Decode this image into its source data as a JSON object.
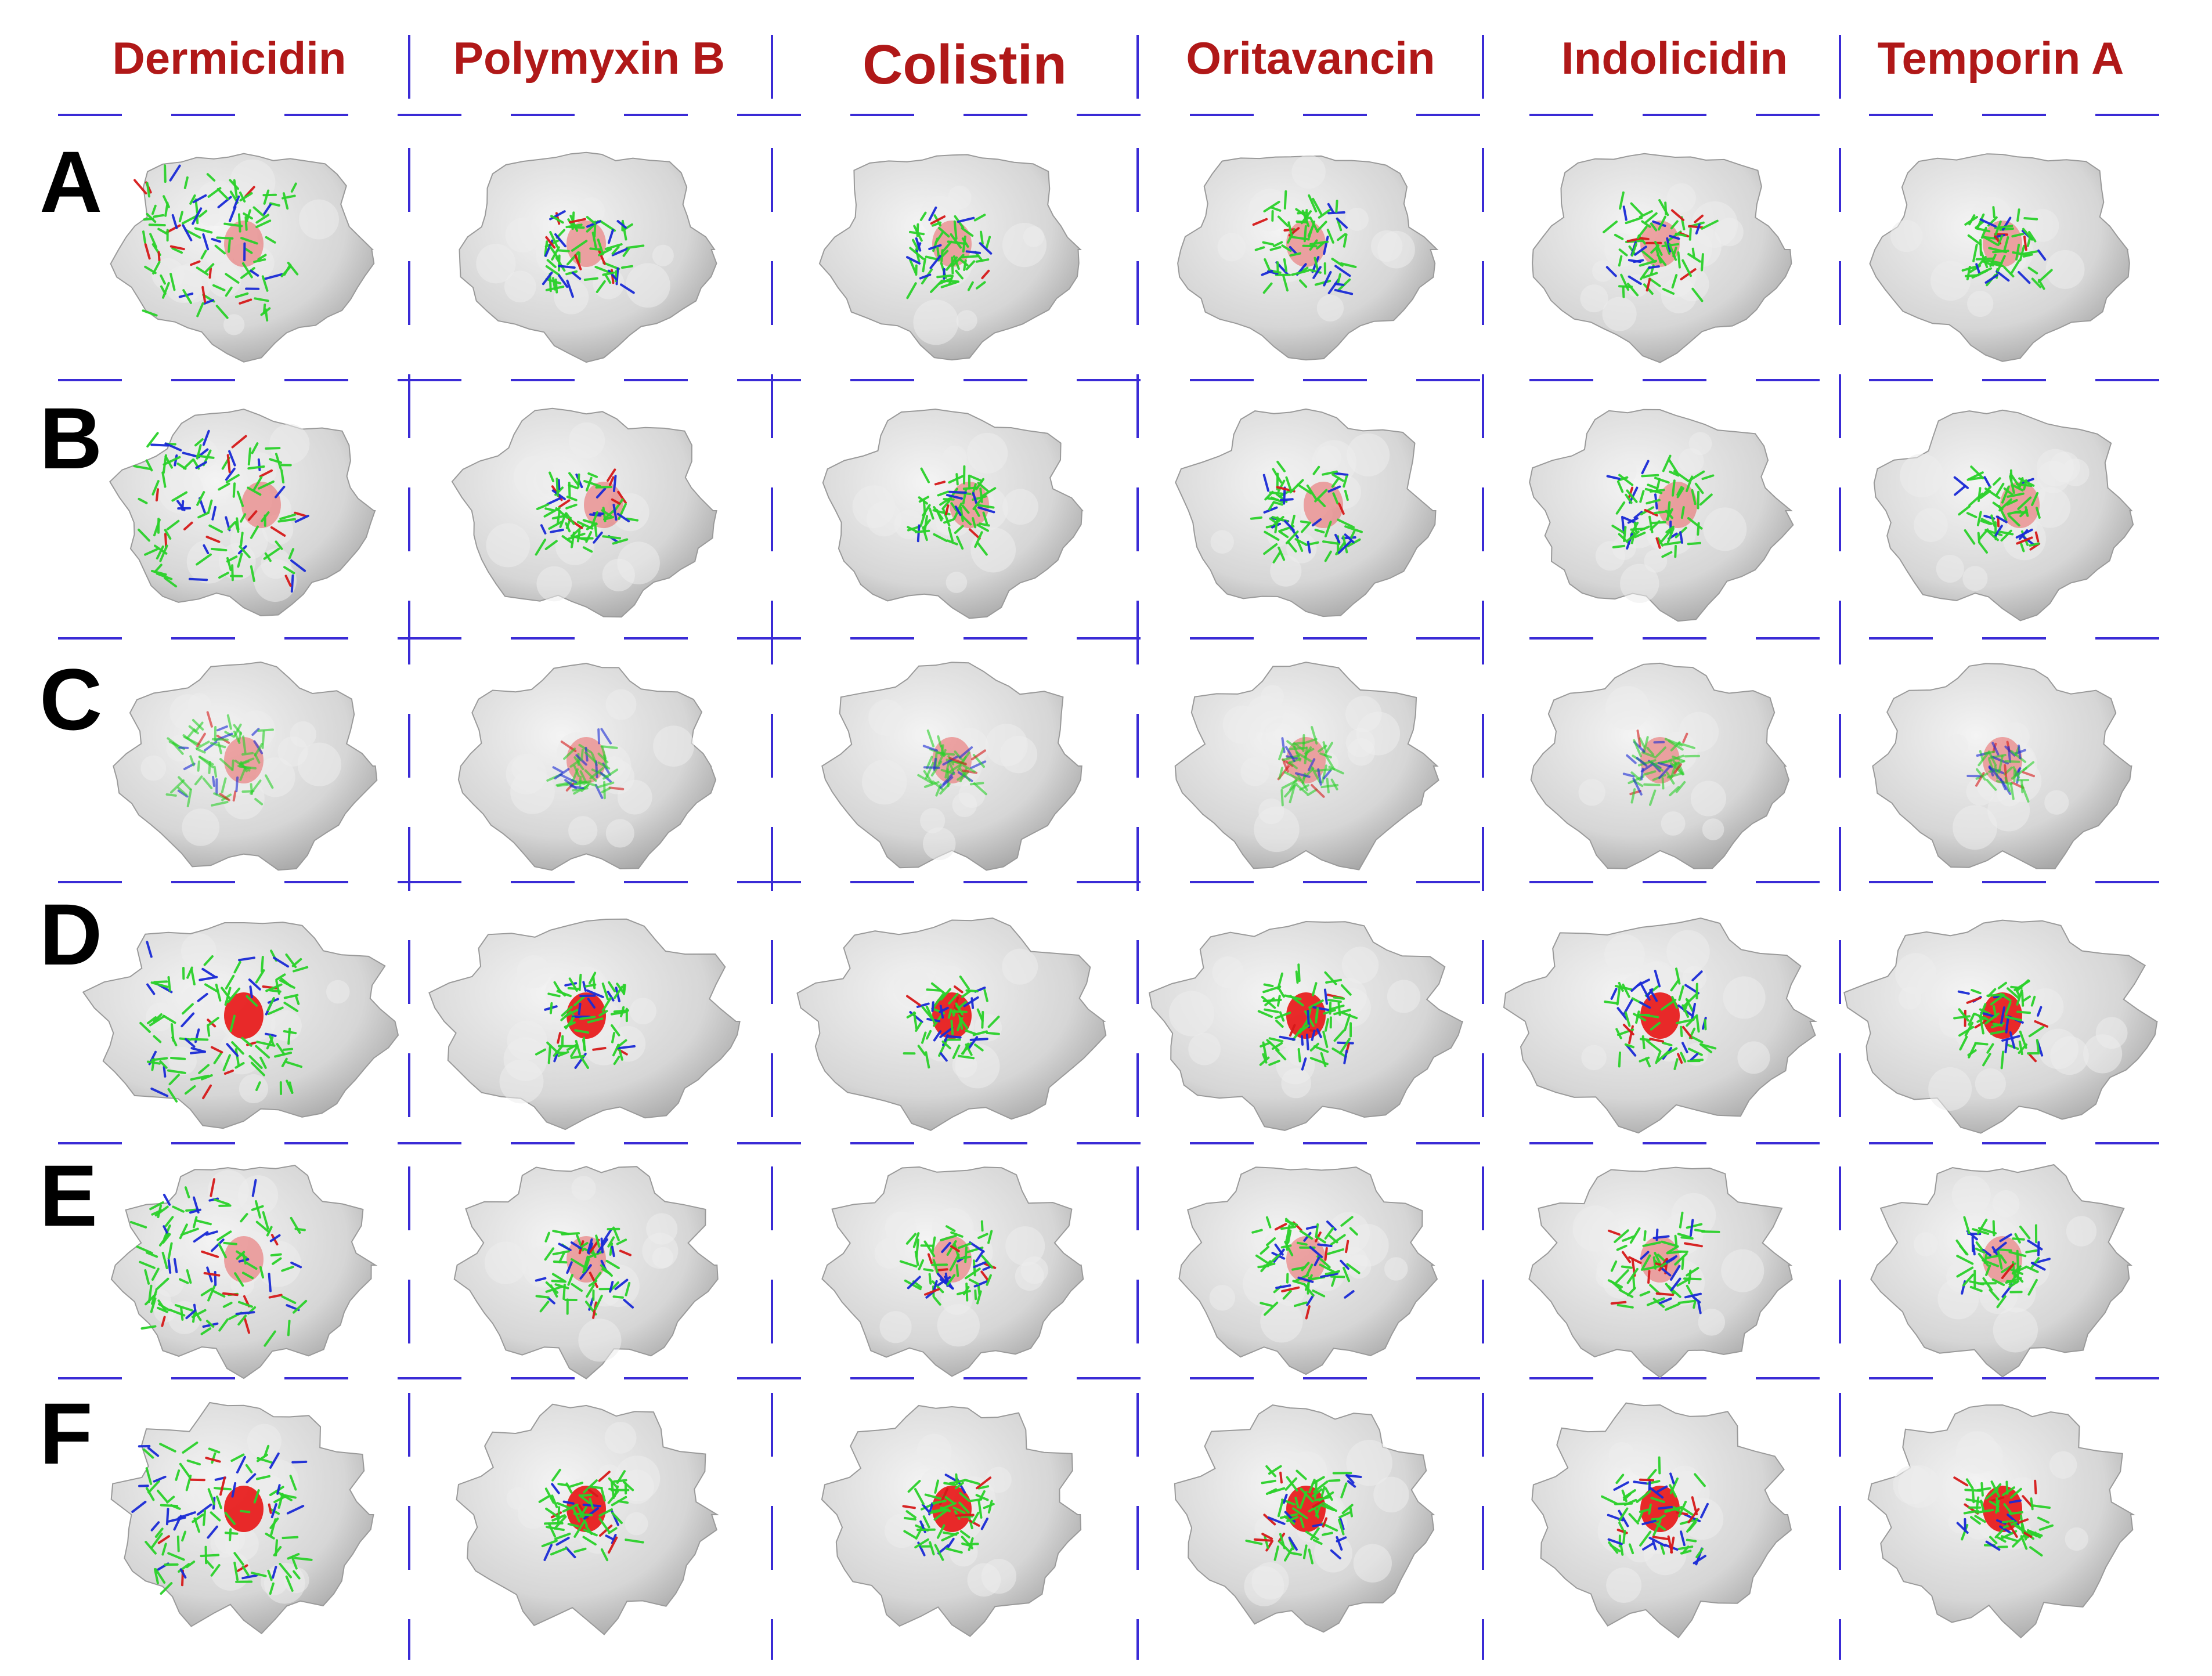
{
  "columns": [
    {
      "label": "Dermicidin"
    },
    {
      "label": "Polymyxin B"
    },
    {
      "label": "Colistin"
    },
    {
      "label": "Oritavancin"
    },
    {
      "label": "Indolicidin"
    },
    {
      "label": "Temporin A"
    }
  ],
  "rows": [
    {
      "label": "A"
    },
    {
      "label": "B"
    },
    {
      "label": "C"
    },
    {
      "label": "D"
    },
    {
      "label": "E"
    },
    {
      "label": "F"
    }
  ],
  "colors": {
    "header_text": "#b01818",
    "row_label": "#000000",
    "grid_line": "#3a2bd6",
    "protein_surface": "#d6d6d6",
    "binding_site": "#e81414",
    "ligand_carbon": "#2bd12b",
    "ligand_nitrogen": "#1a2bd6",
    "ligand_oxygen": "#d61a1a"
  },
  "panel_icons": [
    "protein-surface-icon",
    "binding-site-icon",
    "ligand-sticks-icon"
  ]
}
